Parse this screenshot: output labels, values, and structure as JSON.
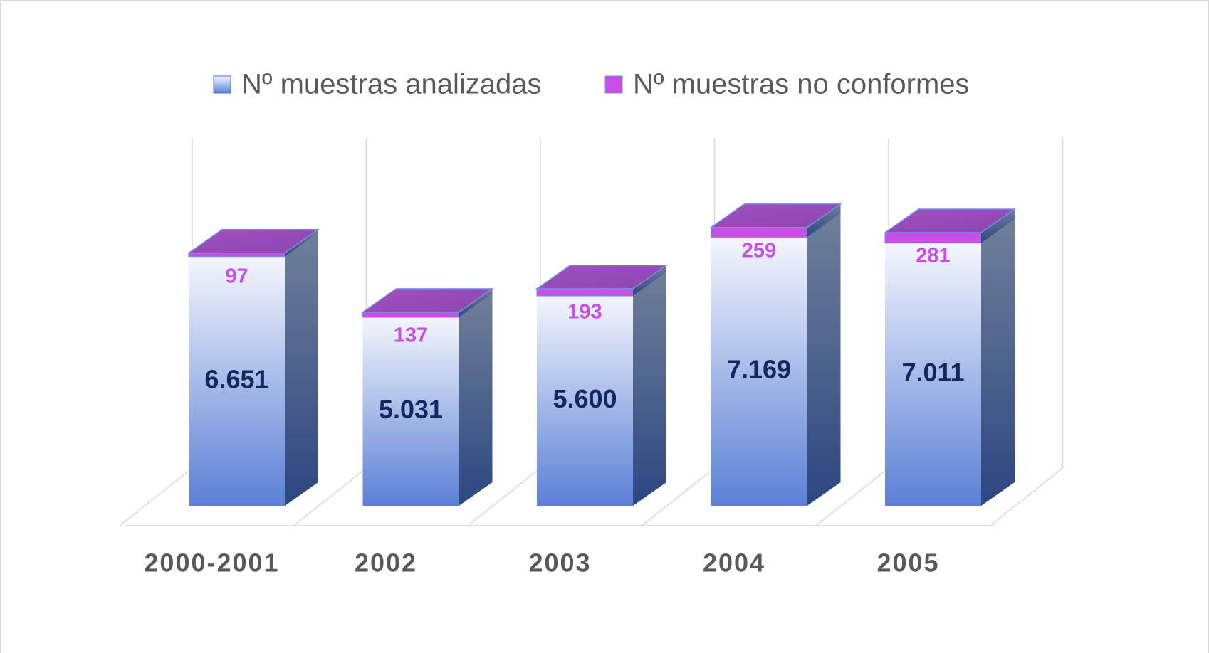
{
  "chart_data": {
    "type": "bar3d_stacked",
    "categories": [
      "2000-2001",
      "2002",
      "2003",
      "2004",
      "2005"
    ],
    "series": [
      {
        "name": "Nº muestras analizadas",
        "color": "#4a74cc",
        "values": [
          6651,
          5031,
          5600,
          7169,
          7011
        ],
        "value_labels": [
          "6.651",
          "5.031",
          "5.600",
          "7.169",
          "7.011"
        ]
      },
      {
        "name": "Nº muestras no conformes",
        "color": "#c84ee8",
        "values": [
          97,
          137,
          193,
          259,
          281
        ]
      }
    ],
    "ylim": [
      0,
      9000
    ]
  }
}
